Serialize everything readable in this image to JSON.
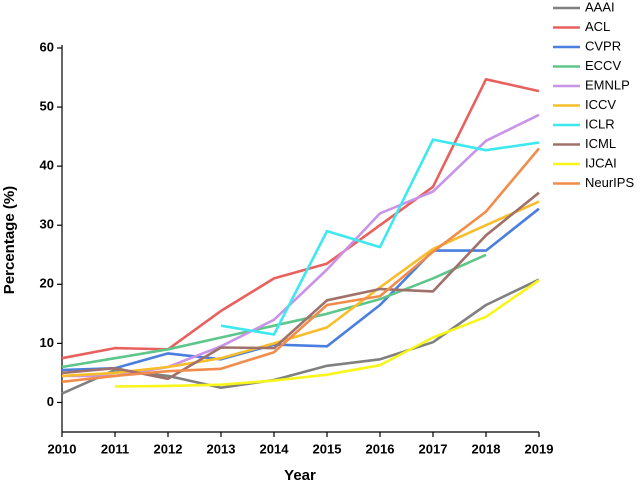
{
  "chart_data": {
    "type": "line",
    "x_label": "Year",
    "y_label": "Percentage (%)",
    "x": [
      2010,
      2011,
      2012,
      2013,
      2014,
      2015,
      2016,
      2017,
      2018,
      2019
    ],
    "xlim": [
      2010,
      2019
    ],
    "xticks": [
      2010,
      2011,
      2012,
      2013,
      2014,
      2015,
      2016,
      2017,
      2018,
      2019
    ],
    "ylim": [
      -5,
      60
    ],
    "yticks": [
      0,
      10,
      20,
      30,
      40,
      50,
      60
    ],
    "legend": "top-right",
    "series": [
      {
        "name": "AAAI",
        "color": "#808080",
        "values": [
          1.5,
          5.5,
          4.5,
          2.5,
          3.8,
          6.2,
          7.3,
          10.2,
          16.5,
          20.8
        ]
      },
      {
        "name": "ACL",
        "color": "#e8615f",
        "values": [
          7.5,
          9.2,
          9,
          15.5,
          21,
          23.5,
          30,
          36.5,
          54.7,
          52.7
        ]
      },
      {
        "name": "CVPR",
        "color": "#4a7fe0",
        "values": [
          5.5,
          5.8,
          8.3,
          7.3,
          9.8,
          9.5,
          16.5,
          25.7,
          25.7,
          32.8
        ]
      },
      {
        "name": "ECCV",
        "color": "#5ec68a",
        "values": [
          6,
          7.5,
          9,
          11,
          13,
          15,
          17.5,
          21,
          25,
          null
        ]
      },
      {
        "name": "EMNLP",
        "color": "#c893e8",
        "values": [
          4.5,
          4.5,
          6,
          9.5,
          14,
          22.5,
          32,
          35.7,
          44.3,
          48.7
        ]
      },
      {
        "name": "ICCV",
        "color": "#f7bd2a",
        "values": [
          4.5,
          5,
          6,
          7.5,
          10,
          12.7,
          19.5,
          26,
          30,
          34
        ]
      },
      {
        "name": "ICLR",
        "color": "#3de8f0",
        "values": [
          null,
          null,
          null,
          13,
          11.5,
          29,
          26.3,
          44.5,
          42.7,
          44
        ]
      },
      {
        "name": "ICML",
        "color": "#a0706a",
        "values": [
          5,
          5.8,
          4,
          9.3,
          9.2,
          17.3,
          19.2,
          18.8,
          28.3,
          35.5
        ]
      },
      {
        "name": "IJCAI",
        "color": "#f7f51a",
        "values": [
          null,
          2.7,
          2.8,
          3,
          3.7,
          4.7,
          6.3,
          11,
          14.5,
          20.7
        ]
      },
      {
        "name": "NeurIPS",
        "color": "#f28c4a",
        "values": [
          3.5,
          4.5,
          5.3,
          5.7,
          8.5,
          16.5,
          18,
          25.5,
          32.3,
          43
        ]
      }
    ]
  }
}
